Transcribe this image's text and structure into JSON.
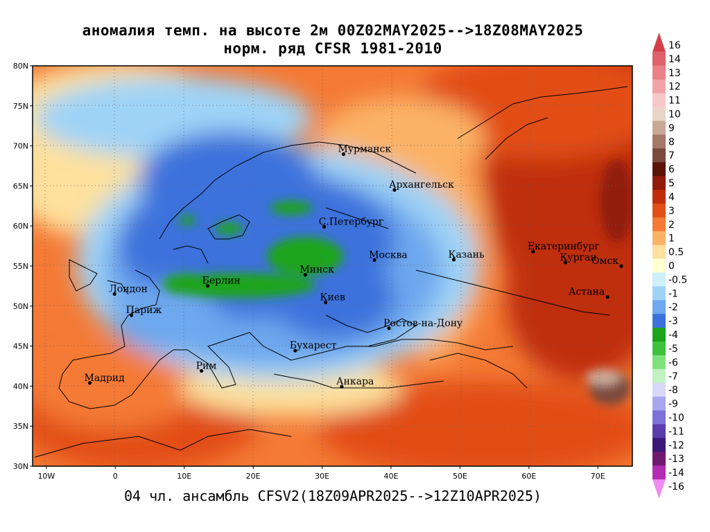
{
  "header": {
    "title_line1": "аномалия темп. на высоте 2м 00Z02MAY2025-->18Z08MAY2025",
    "title_line2": "норм. ряд CFSR 1981-2010"
  },
  "footer": {
    "text": "04 чл. ансамбль CFSV2(18Z09APR2025-->12Z10APR2025)"
  },
  "map": {
    "lon_range": [
      -12,
      75
    ],
    "lat_range": [
      30,
      80
    ],
    "lon_ticks": [
      {
        "value": -10,
        "label": "10W"
      },
      {
        "value": 0,
        "label": "0"
      },
      {
        "value": 10,
        "label": "10E"
      },
      {
        "value": 20,
        "label": "20E"
      },
      {
        "value": 30,
        "label": "30E"
      },
      {
        "value": 40,
        "label": "40E"
      },
      {
        "value": 50,
        "label": "50E"
      },
      {
        "value": 60,
        "label": "60E"
      },
      {
        "value": 70,
        "label": "70E"
      }
    ],
    "lat_ticks": [
      {
        "value": 30,
        "label": "30N"
      },
      {
        "value": 35,
        "label": "35N"
      },
      {
        "value": 40,
        "label": "40N"
      },
      {
        "value": 45,
        "label": "45N"
      },
      {
        "value": 50,
        "label": "50N"
      },
      {
        "value": 55,
        "label": "55N"
      },
      {
        "value": 60,
        "label": "60N"
      },
      {
        "value": 65,
        "label": "65N"
      },
      {
        "value": 70,
        "label": "70N"
      },
      {
        "value": 75,
        "label": "75N"
      },
      {
        "value": 80,
        "label": "80N"
      }
    ],
    "cities": [
      {
        "name": "Мурманск",
        "lon": 33.1,
        "lat": 68.97
      },
      {
        "name": "Архангельск",
        "lon": 40.5,
        "lat": 64.5
      },
      {
        "name": "С.Петербург",
        "lon": 30.3,
        "lat": 59.9
      },
      {
        "name": "Москва",
        "lon": 37.6,
        "lat": 55.75
      },
      {
        "name": "Казань",
        "lon": 49.1,
        "lat": 55.8
      },
      {
        "name": "Екатеринбург",
        "lon": 60.6,
        "lat": 56.8
      },
      {
        "name": "Курган",
        "lon": 65.3,
        "lat": 55.45
      },
      {
        "name": "Омск",
        "lon": 73.4,
        "lat": 54.98
      },
      {
        "name": "Астана",
        "lon": 71.4,
        "lat": 51.13
      },
      {
        "name": "Минск",
        "lon": 27.56,
        "lat": 53.9
      },
      {
        "name": "Берлин",
        "lon": 13.4,
        "lat": 52.52
      },
      {
        "name": "Лондон",
        "lon": -0.12,
        "lat": 51.5
      },
      {
        "name": "Париж",
        "lon": 2.35,
        "lat": 48.85
      },
      {
        "name": "Киев",
        "lon": 30.5,
        "lat": 50.45
      },
      {
        "name": "Ростов-на-Дону",
        "lon": 39.7,
        "lat": 47.23
      },
      {
        "name": "Бухарест",
        "lon": 26.1,
        "lat": 44.43
      },
      {
        "name": "Рим",
        "lon": 12.5,
        "lat": 41.9
      },
      {
        "name": "Мадрид",
        "lon": -3.7,
        "lat": 40.4
      },
      {
        "name": "Анкара",
        "lon": 32.85,
        "lat": 39.93
      }
    ]
  },
  "colorbar": {
    "levels": [
      {
        "label": "16",
        "color": "#d2414a"
      },
      {
        "label": "14",
        "color": "#e0626a"
      },
      {
        "label": "13",
        "color": "#ea8088"
      },
      {
        "label": "12",
        "color": "#f3a3a8"
      },
      {
        "label": "11",
        "color": "#f8c8c8"
      },
      {
        "label": "10",
        "color": "#ead5c8"
      },
      {
        "label": "9",
        "color": "#c9a898"
      },
      {
        "label": "8",
        "color": "#a57868"
      },
      {
        "label": "7",
        "color": "#7a4a3c"
      },
      {
        "label": "6",
        "color": "#5a1408"
      },
      {
        "label": "5",
        "color": "#921a08"
      },
      {
        "label": "4",
        "color": "#bf2d0c"
      },
      {
        "label": "3",
        "color": "#e24e16"
      },
      {
        "label": "2",
        "color": "#f47a35"
      },
      {
        "label": "1",
        "color": "#fbb266"
      },
      {
        "label": "0.5",
        "color": "#fde19c"
      },
      {
        "label": "0",
        "color": "#ffffcf"
      },
      {
        "label": "-0.5",
        "color": "#cdf0fb"
      },
      {
        "label": "-1",
        "color": "#9fd3f6"
      },
      {
        "label": "-2",
        "color": "#6ea8ee"
      },
      {
        "label": "-3",
        "color": "#3c72dc"
      },
      {
        "label": "-4",
        "color": "#1ca41c"
      },
      {
        "label": "-5",
        "color": "#3cc23c"
      },
      {
        "label": "-6",
        "color": "#7ee27e"
      },
      {
        "label": "-7",
        "color": "#c2f2c2"
      },
      {
        "label": "-8",
        "color": "#d7d7f8"
      },
      {
        "label": "-9",
        "color": "#a8a6ee"
      },
      {
        "label": "-10",
        "color": "#7d72d8"
      },
      {
        "label": "-11",
        "color": "#5a3caa"
      },
      {
        "label": "-12",
        "color": "#3c1878"
      },
      {
        "label": "-13",
        "color": "#701870"
      },
      {
        "label": "-14",
        "color": "#b42cb4"
      },
      {
        "label": "-16",
        "color": "#f08cf0"
      }
    ]
  }
}
